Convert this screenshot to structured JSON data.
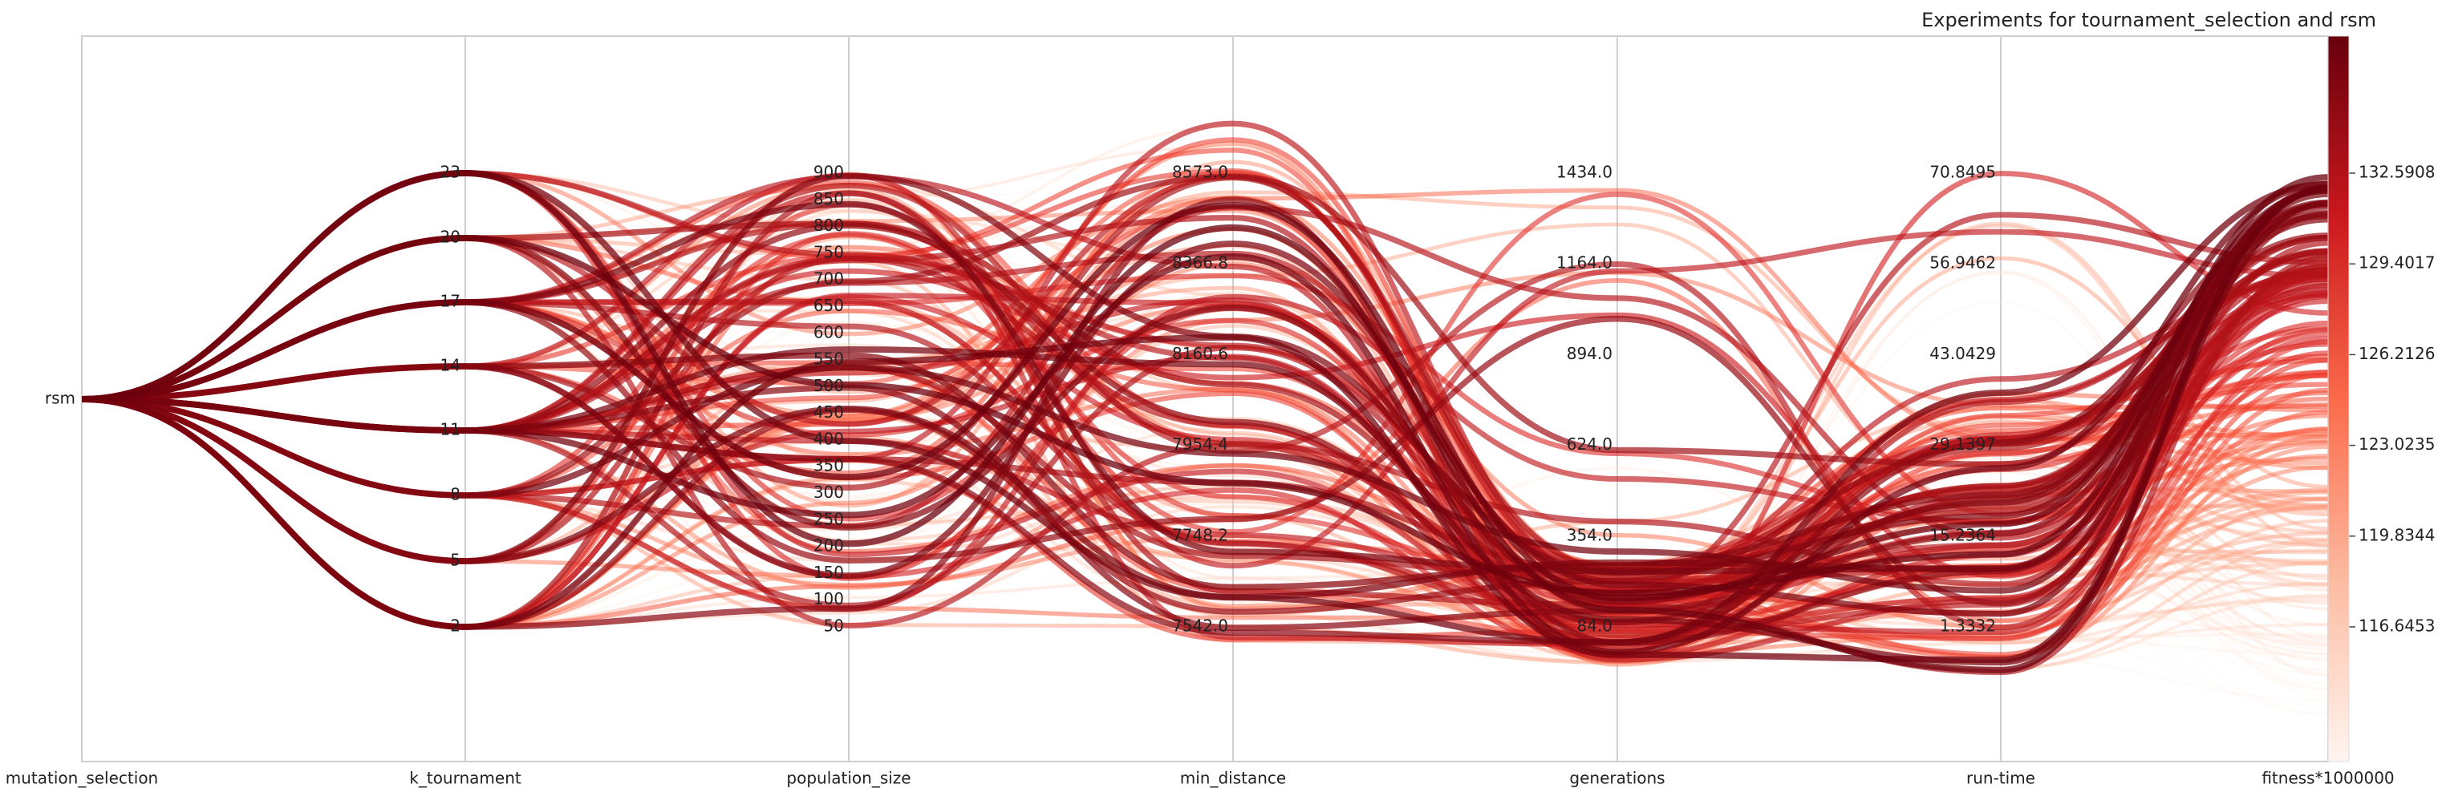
{
  "chart_data": {
    "type": "parallel_coordinates",
    "title": "Experiments for tournament_selection and rsm",
    "axes": [
      {
        "name": "mutation_selection",
        "type": "categorical",
        "ticks": [
          "rsm"
        ]
      },
      {
        "name": "k_tournament",
        "ticks": [
          "2",
          "5",
          "8",
          "11",
          "14",
          "17",
          "20",
          "23"
        ]
      },
      {
        "name": "population_size",
        "ticks": [
          "50",
          "100",
          "150",
          "200",
          "250",
          "300",
          "350",
          "400",
          "450",
          "500",
          "550",
          "600",
          "650",
          "700",
          "750",
          "800",
          "850",
          "900"
        ]
      },
      {
        "name": "min_distance",
        "ticks": [
          "7542.0",
          "7748.2",
          "7954.4",
          "8160.6",
          "8366.8",
          "8573.0"
        ]
      },
      {
        "name": "generations",
        "ticks": [
          "84.0",
          "354.0",
          "624.0",
          "894.0",
          "1164.0",
          "1434.0"
        ]
      },
      {
        "name": "run-time",
        "ticks": [
          "1.3332",
          "15.2364",
          "29.1397",
          "43.0429",
          "56.9462",
          "70.8495"
        ]
      },
      {
        "name": "fitness*1000000",
        "ticks": [
          "116.6453",
          "119.8344",
          "123.0235",
          "126.2126",
          "129.4017",
          "132.5908"
        ]
      }
    ],
    "colorbar": {
      "colormap": "Reds",
      "min": 114.0,
      "max": 135.5
    },
    "grid": true,
    "line_count_estimate": 160
  }
}
